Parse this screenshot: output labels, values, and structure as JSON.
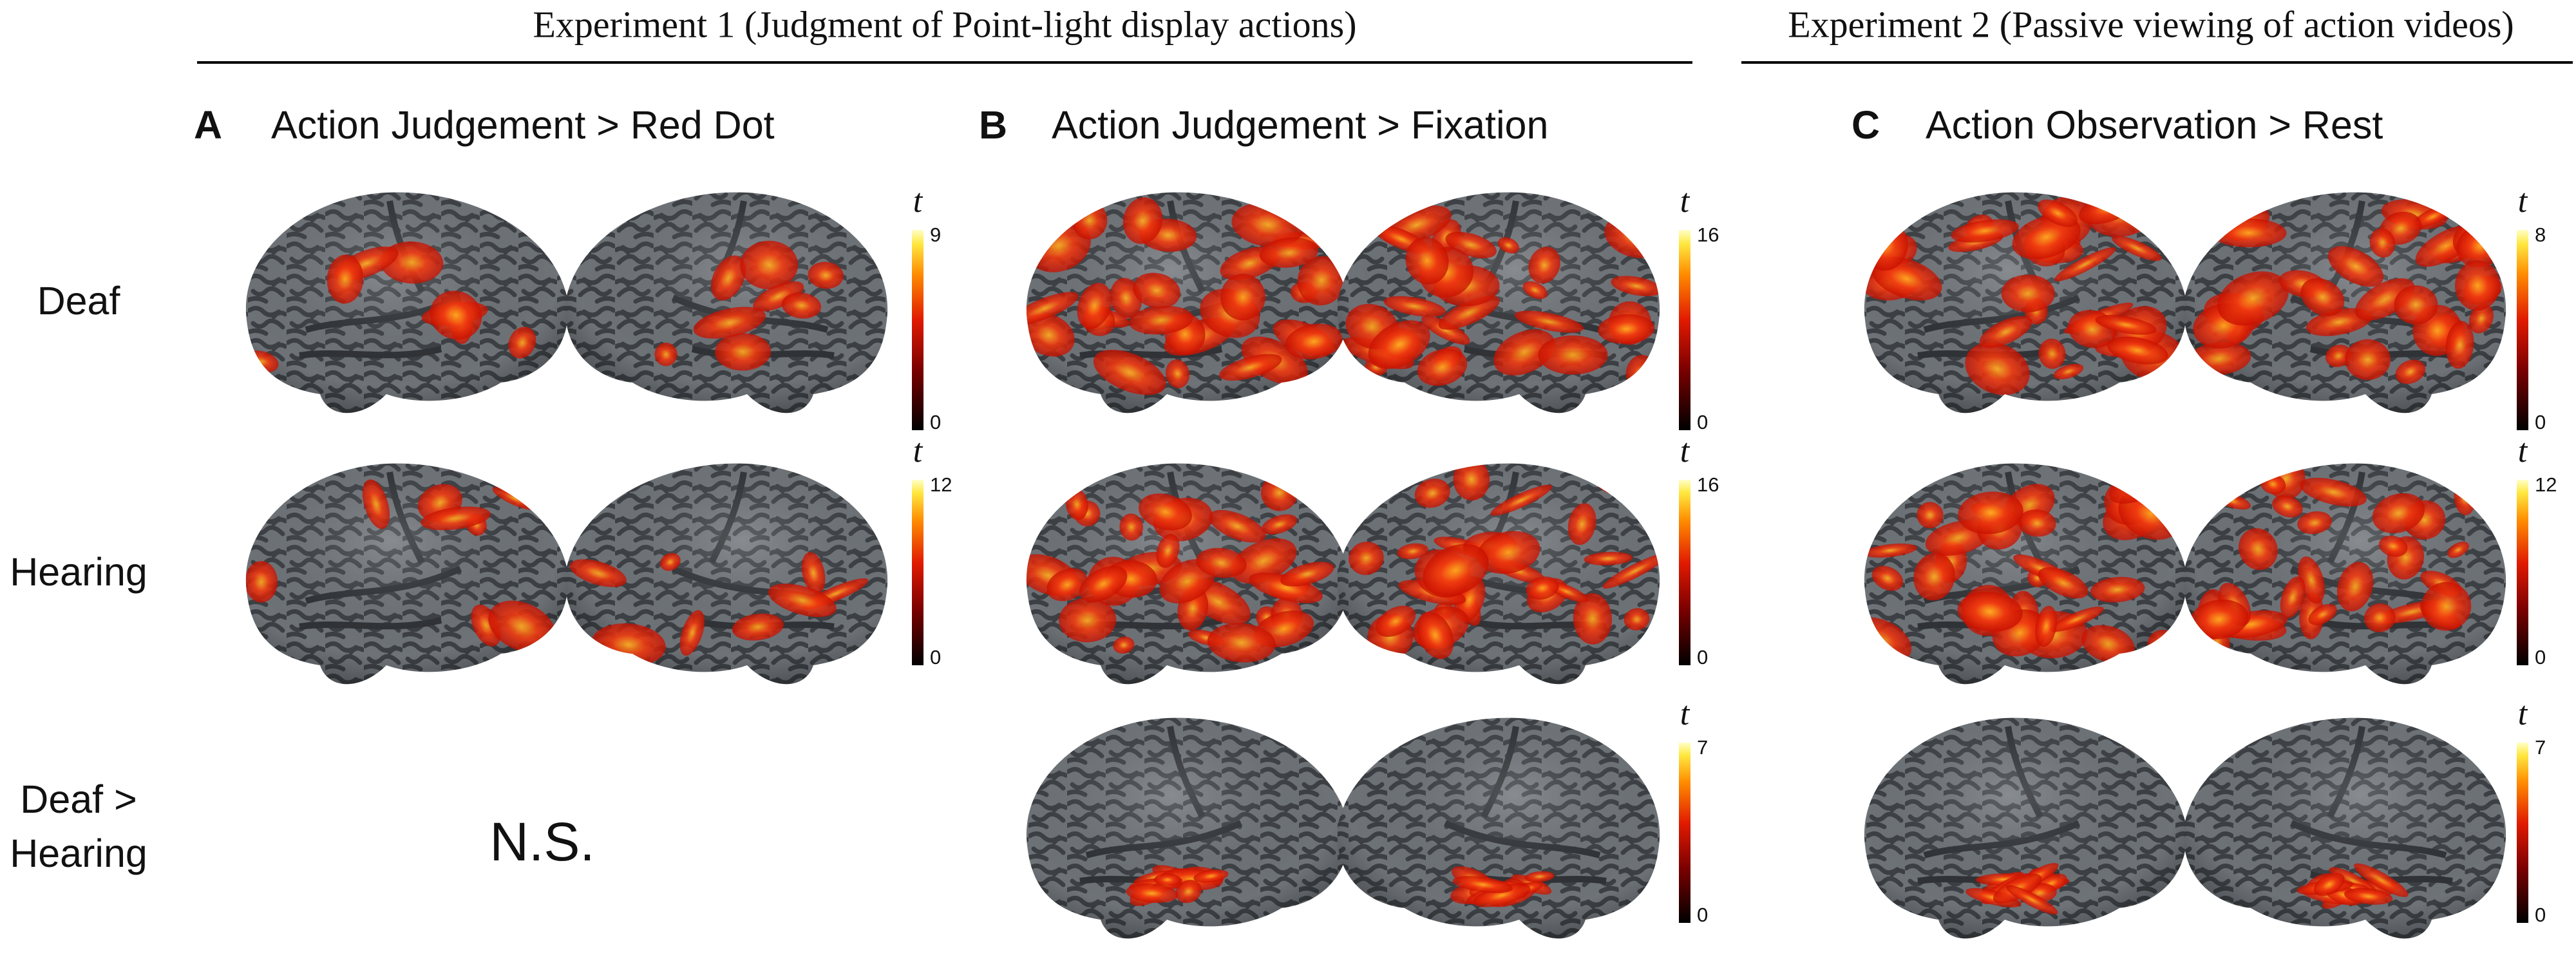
{
  "experiments": [
    {
      "title": "Experiment 1 (Judgment of Point-light display actions)"
    },
    {
      "title": "Experiment 2 (Passive viewing of action videos)"
    }
  ],
  "row_labels": [
    [
      "Deaf"
    ],
    [
      "Hearing"
    ],
    [
      "Deaf >",
      "Hearing"
    ]
  ],
  "panels": [
    {
      "letter": "A",
      "title": "Action Judgement > Red Dot",
      "colorbars": [
        {
          "symbol": "t",
          "max": 9,
          "min": 0
        },
        {
          "symbol": "t",
          "max": 12,
          "min": 0
        }
      ],
      "note": "N.S."
    },
    {
      "letter": "B",
      "title": "Action Judgement > Fixation",
      "colorbars": [
        {
          "symbol": "t",
          "max": 16,
          "min": 0
        },
        {
          "symbol": "t",
          "max": 16,
          "min": 0
        },
        {
          "symbol": "t",
          "max": 7,
          "min": 0
        }
      ]
    },
    {
      "letter": "C",
      "title": "Action Observation > Rest",
      "colorbars": [
        {
          "symbol": "t",
          "max": 8,
          "min": 0
        },
        {
          "symbol": "t",
          "max": 12,
          "min": 0
        },
        {
          "symbol": "t",
          "max": 7,
          "min": 0
        }
      ]
    }
  ]
}
